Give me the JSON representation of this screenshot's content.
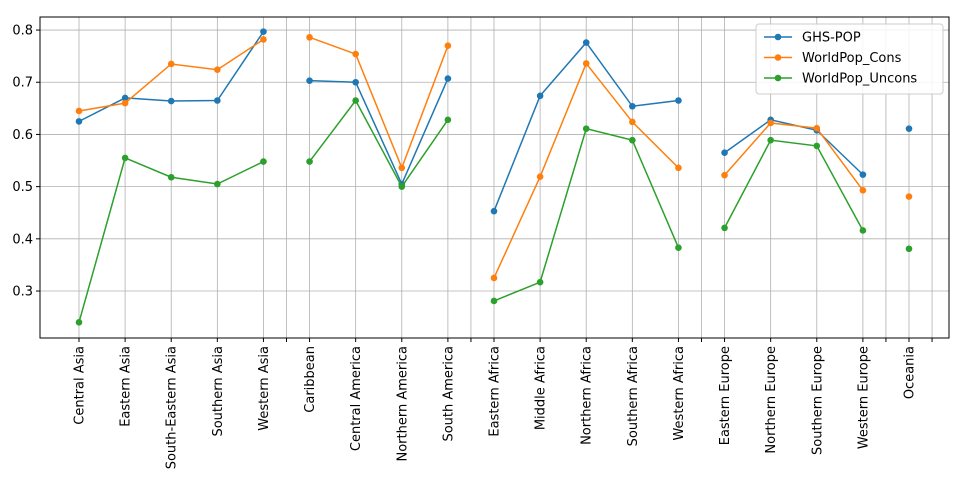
{
  "chart_data": {
    "type": "line",
    "categories": [
      "Central Asia",
      "Eastern Asia",
      "South-Eastern Asia",
      "Southern Asia",
      "Western Asia",
      "Caribbean",
      "Central America",
      "Northern America",
      "South America",
      "Eastern Africa",
      "Middle Africa",
      "Northern Africa",
      "Southern Africa",
      "Western Africa",
      "Eastern Europe",
      "Northern Europe",
      "Southern Europe",
      "Western Europe",
      "Oceania"
    ],
    "groups": [
      [
        0,
        1,
        2,
        3,
        4
      ],
      [
        5,
        6,
        7,
        8
      ],
      [
        9,
        10,
        11,
        12,
        13
      ],
      [
        14,
        15,
        16,
        17
      ],
      [
        18
      ]
    ],
    "ylim": [
      0.21,
      0.825
    ],
    "yticks": [
      0.3,
      0.4,
      0.5,
      0.6,
      0.7,
      0.8
    ],
    "grid": true,
    "legend_position": "top-right",
    "series": [
      {
        "name": "GHS-POP",
        "color": "#1f77b4",
        "values": [
          0.625,
          0.67,
          0.664,
          0.665,
          0.797,
          0.703,
          0.7,
          0.505,
          0.707,
          0.453,
          0.674,
          0.776,
          0.654,
          0.665,
          0.565,
          0.628,
          0.608,
          0.523,
          0.611
        ]
      },
      {
        "name": "WorldPop_Cons",
        "color": "#ff7f0e",
        "values": [
          0.645,
          0.66,
          0.735,
          0.724,
          0.782,
          0.786,
          0.754,
          0.536,
          0.77,
          0.325,
          0.519,
          0.736,
          0.624,
          0.536,
          0.522,
          0.622,
          0.612,
          0.493,
          0.481
        ]
      },
      {
        "name": "WorldPop_Uncons",
        "color": "#2ca02c",
        "values": [
          0.24,
          0.555,
          0.518,
          0.505,
          0.548,
          0.548,
          0.665,
          0.5,
          0.628,
          0.281,
          0.317,
          0.611,
          0.589,
          0.383,
          0.421,
          0.589,
          0.578,
          0.416,
          0.381
        ]
      }
    ]
  }
}
